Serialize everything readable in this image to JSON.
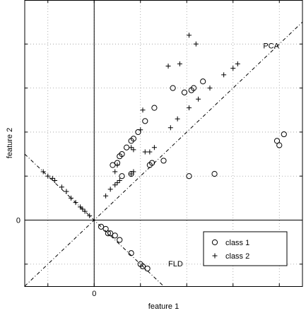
{
  "chart_data": {
    "type": "scatter",
    "title": "",
    "xlabel": "feature 1",
    "ylabel": "feature 2",
    "xlim": [
      -3,
      9
    ],
    "ylim": [
      -3,
      10
    ],
    "xtick_positions": [
      -2,
      0,
      2,
      4,
      6,
      8
    ],
    "ytick_positions": [
      -2,
      0,
      2,
      4,
      6,
      8,
      10
    ],
    "xtick_labels": [
      {
        "value": 0,
        "label": "0"
      }
    ],
    "ytick_labels": [
      {
        "value": 0,
        "label": "0"
      }
    ],
    "grid": true,
    "legend_position": "bottom-right",
    "series": [
      {
        "name": "class 1",
        "marker": "circle",
        "points": [
          [
            0.8,
            2.5
          ],
          [
            1.0,
            2.6
          ],
          [
            1.1,
            2.9
          ],
          [
            1.2,
            3.0
          ],
          [
            1.4,
            3.3
          ],
          [
            1.6,
            3.6
          ],
          [
            1.7,
            3.7
          ],
          [
            1.9,
            4.0
          ],
          [
            2.2,
            4.5
          ],
          [
            2.6,
            5.1
          ],
          [
            3.4,
            6.0
          ],
          [
            3.9,
            5.8
          ],
          [
            4.2,
            5.9
          ],
          [
            4.3,
            6.0
          ],
          [
            4.7,
            6.3
          ],
          [
            1.2,
            2.0
          ],
          [
            1.6,
            2.1
          ],
          [
            2.4,
            2.5
          ],
          [
            2.5,
            2.6
          ],
          [
            3.0,
            2.7
          ],
          [
            4.1,
            2.0
          ],
          [
            5.2,
            2.1
          ],
          [
            7.9,
            3.6
          ],
          [
            8.0,
            3.4
          ],
          [
            8.2,
            3.9
          ],
          [
            0.3,
            -0.3
          ],
          [
            0.5,
            -0.4
          ],
          [
            0.6,
            -0.6
          ],
          [
            0.7,
            -0.6
          ],
          [
            0.9,
            -0.7
          ],
          [
            1.1,
            -0.9
          ],
          [
            1.6,
            -1.5
          ],
          [
            2.0,
            -2.0
          ],
          [
            2.1,
            -2.1
          ],
          [
            2.3,
            -2.2
          ]
        ]
      },
      {
        "name": "class 2",
        "marker": "plus",
        "points": [
          [
            0.5,
            1.1
          ],
          [
            0.7,
            1.4
          ],
          [
            0.9,
            1.6
          ],
          [
            1.0,
            1.7
          ],
          [
            1.1,
            1.8
          ],
          [
            1.6,
            2.1
          ],
          [
            1.7,
            2.2
          ],
          [
            2.4,
            3.1
          ],
          [
            2.6,
            3.3
          ],
          [
            3.3,
            4.2
          ],
          [
            3.6,
            4.6
          ],
          [
            4.1,
            5.1
          ],
          [
            4.5,
            5.5
          ],
          [
            5.0,
            6.0
          ],
          [
            5.6,
            6.6
          ],
          [
            6.0,
            6.9
          ],
          [
            6.2,
            7.1
          ],
          [
            0.9,
            2.2
          ],
          [
            1.0,
            2.5
          ],
          [
            1.6,
            3.3
          ],
          [
            1.7,
            3.2
          ],
          [
            2.2,
            3.1
          ],
          [
            2.0,
            4.1
          ],
          [
            2.1,
            5.0
          ],
          [
            3.2,
            7.0
          ],
          [
            3.7,
            7.1
          ],
          [
            4.1,
            8.4
          ],
          [
            4.4,
            8.0
          ],
          [
            -2.2,
            2.2
          ],
          [
            -2.0,
            2.0
          ],
          [
            -1.8,
            1.9
          ],
          [
            -1.7,
            1.8
          ],
          [
            -1.4,
            1.5
          ],
          [
            -1.2,
            1.3
          ],
          [
            -1.0,
            1.0
          ],
          [
            -0.8,
            0.8
          ],
          [
            -0.6,
            0.6
          ],
          [
            -0.5,
            0.5
          ],
          [
            -0.4,
            0.4
          ],
          [
            -0.2,
            0.2
          ]
        ]
      }
    ],
    "lines": [
      {
        "name": "PCA",
        "slope": 1.0
      },
      {
        "name": "FLD",
        "slope": -1.0
      }
    ],
    "annotations": [
      {
        "text": "PCA",
        "x": 7.3,
        "y": 7.8
      },
      {
        "text": "FLD",
        "x": 3.2,
        "y": -2.1
      }
    ]
  }
}
